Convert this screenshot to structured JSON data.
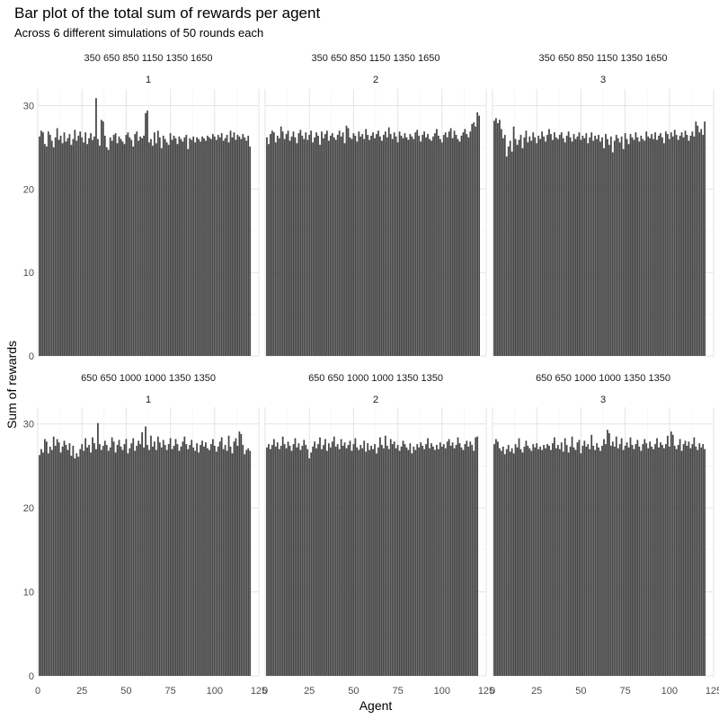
{
  "chart_data": {
    "type": "bar",
    "title": "Bar plot of the total sum of rewards per agent",
    "subtitle": "Across 6 different simulations of 50 rounds each",
    "xlabel": "Agent",
    "ylabel": "Sum of rewards",
    "xlim": [
      0,
      125
    ],
    "ylim": [
      0,
      32
    ],
    "x_ticks": [
      0,
      25,
      50,
      75,
      100,
      125
    ],
    "y_ticks": [
      0,
      10,
      20,
      30
    ],
    "grid": true,
    "bar_color": "#474747",
    "facet_rows": [
      "350 650 850 1150 1350 1650",
      "650 650 1000 1000 1350 1350"
    ],
    "facet_cols": [
      "1",
      "2",
      "3"
    ],
    "panels": [
      {
        "row_label": "350 650 850 1150 1350 1650",
        "col_label": "1",
        "x_start": 1,
        "values": [
          26.3,
          27.0,
          26.8,
          25.4,
          25.1,
          26.9,
          26.5,
          25.8,
          25.0,
          26.2,
          27.3,
          25.9,
          26.4,
          25.5,
          26.8,
          25.7,
          26.1,
          26.6,
          25.3,
          26.0,
          27.1,
          25.8,
          26.4,
          26.9,
          26.2,
          25.6,
          26.8,
          25.4,
          26.1,
          26.7,
          25.9,
          26.3,
          30.9,
          26.0,
          25.2,
          28.3,
          28.1,
          26.4,
          25.0,
          24.7,
          26.2,
          25.8,
          26.5,
          26.7,
          25.5,
          26.3,
          26.0,
          25.7,
          25.4,
          26.5,
          26.8,
          26.2,
          25.9,
          25.1,
          26.6,
          26.9,
          25.8,
          26.3,
          26.1,
          26.4,
          29.1,
          29.4,
          25.6,
          26.0,
          25.2,
          26.8,
          25.5,
          27.0,
          26.2,
          24.9,
          26.4,
          26.0,
          25.6,
          25.3,
          26.7,
          25.9,
          26.4,
          26.1,
          25.4,
          26.3,
          26.0,
          25.7,
          26.2,
          26.5,
          24.8,
          26.1,
          25.9,
          26.3,
          25.6,
          26.2,
          26.0,
          25.7,
          26.3,
          26.1,
          25.8,
          26.4,
          26.2,
          26.0,
          26.6,
          26.3,
          25.9,
          26.5,
          26.2,
          26.7,
          25.8,
          26.1,
          26.5,
          25.6,
          27.0,
          26.2,
          26.8,
          25.9,
          26.5,
          26.3,
          26.0,
          26.6,
          26.2,
          25.8,
          26.4,
          25.1
        ]
      },
      {
        "row_label": "350 650 850 1150 1350 1650",
        "col_label": "2",
        "x_start": 1,
        "values": [
          26.2,
          25.4,
          26.6,
          27.0,
          26.8,
          25.6,
          26.4,
          26.1,
          27.5,
          26.9,
          26.0,
          26.6,
          27.0,
          25.8,
          26.3,
          26.9,
          26.2,
          25.5,
          26.7,
          27.1,
          26.4,
          26.0,
          26.8,
          25.9,
          26.5,
          27.0,
          25.6,
          26.2,
          26.8,
          26.4,
          25.3,
          26.9,
          26.1,
          26.6,
          27.0,
          25.8,
          26.4,
          26.7,
          26.2,
          25.9,
          26.5,
          27.0,
          26.3,
          26.8,
          25.5,
          27.6,
          27.3,
          26.2,
          26.0,
          26.7,
          26.4,
          25.7,
          26.9,
          26.3,
          26.6,
          26.0,
          27.2,
          26.5,
          25.9,
          26.4,
          26.8,
          26.1,
          26.6,
          27.0,
          26.3,
          25.8,
          26.5,
          26.9,
          26.2,
          27.4,
          26.6,
          26.0,
          26.8,
          26.3,
          25.6,
          26.9,
          26.4,
          26.1,
          26.7,
          26.2,
          25.9,
          26.6,
          26.3,
          26.0,
          26.8,
          27.1,
          26.4,
          25.7,
          26.5,
          26.9,
          26.2,
          26.6,
          26.0,
          25.8,
          26.3,
          26.7,
          27.2,
          26.4,
          26.0,
          25.6,
          26.5,
          26.8,
          26.2,
          26.9,
          27.3,
          26.1,
          27.0,
          26.5,
          26.0,
          25.7,
          26.4,
          26.8,
          27.2,
          26.6,
          26.2,
          26.9,
          27.8,
          28.0,
          27.5,
          29.2,
          28.8
        ]
      },
      {
        "row_label": "350 650 850 1150 1350 1650",
        "col_label": "3",
        "x_start": 1,
        "values": [
          28.2,
          28.5,
          27.9,
          28.3,
          27.2,
          26.1,
          26.5,
          23.9,
          25.1,
          25.8,
          24.5,
          27.5,
          26.0,
          25.3,
          25.9,
          26.5,
          24.9,
          26.2,
          27.0,
          25.6,
          26.3,
          25.8,
          26.8,
          26.2,
          25.5,
          26.4,
          26.0,
          26.9,
          26.3,
          25.7,
          26.5,
          27.2,
          26.6,
          25.9,
          26.8,
          26.2,
          26.0,
          26.5,
          26.8,
          26.1,
          25.6,
          26.4,
          26.9,
          26.2,
          25.7,
          26.6,
          26.0,
          26.3,
          26.8,
          25.9,
          26.4,
          26.1,
          26.7,
          25.5,
          26.2,
          26.8,
          25.8,
          26.4,
          26.0,
          26.5,
          25.7,
          26.2,
          24.9,
          26.6,
          26.0,
          25.3,
          26.3,
          24.4,
          25.8,
          26.5,
          26.1,
          25.6,
          26.3,
          24.8,
          26.7,
          26.0,
          25.4,
          26.6,
          26.2,
          25.9,
          26.8,
          26.2,
          25.7,
          26.4,
          26.0,
          25.8,
          26.9,
          26.3,
          26.1,
          26.6,
          26.0,
          26.8,
          25.9,
          26.4,
          26.7,
          26.2,
          25.5,
          26.9,
          26.6,
          26.0,
          26.8,
          26.3,
          27.1,
          26.5,
          25.9,
          26.4,
          26.8,
          26.2,
          27.0,
          26.5,
          25.8,
          26.4,
          26.9,
          26.3,
          28.1,
          27.6,
          26.8,
          27.2,
          26.5,
          28.1
        ]
      },
      {
        "row_label": "650 650 1000 1000 1350 1350",
        "col_label": "1",
        "x_start": 1,
        "values": [
          26.3,
          27.0,
          26.6,
          28.2,
          27.9,
          26.5,
          27.3,
          26.9,
          28.5,
          27.4,
          28.2,
          27.8,
          26.6,
          27.3,
          28.0,
          27.5,
          26.9,
          27.7,
          26.2,
          27.4,
          25.9,
          26.5,
          26.1,
          27.0,
          27.6,
          26.8,
          28.3,
          27.2,
          27.5,
          26.6,
          28.4,
          27.7,
          27.0,
          30.1,
          27.6,
          26.9,
          27.4,
          28.0,
          27.5,
          26.8,
          27.2,
          28.4,
          27.9,
          26.6,
          27.5,
          28.1,
          27.3,
          26.9,
          27.6,
          28.2,
          26.5,
          27.1,
          27.7,
          28.3,
          26.8,
          27.4,
          28.0,
          27.6,
          29.0,
          27.2,
          29.7,
          27.5,
          26.9,
          28.6,
          27.3,
          27.9,
          26.9,
          28.5,
          27.8,
          27.2,
          28.1,
          27.5,
          26.9,
          27.6,
          28.3,
          27.0,
          27.4,
          28.2,
          27.6,
          26.8,
          27.3,
          27.9,
          28.5,
          27.6,
          27.0,
          27.5,
          28.1,
          27.2,
          26.8,
          27.7,
          26.6,
          27.5,
          28.0,
          27.3,
          27.8,
          27.1,
          26.9,
          27.6,
          28.2,
          27.4,
          26.7,
          27.3,
          27.9,
          28.4,
          27.0,
          27.5,
          26.8,
          28.6,
          27.3,
          26.5,
          27.9,
          28.3,
          27.4,
          29.1,
          28.8,
          27.5,
          26.4,
          26.9,
          27.1,
          26.8
        ]
      },
      {
        "row_label": "650 650 1000 1000 1350 1350",
        "col_label": "2",
        "x_start": 1,
        "values": [
          27.2,
          27.6,
          27.0,
          27.5,
          28.2,
          27.3,
          27.8,
          27.0,
          27.4,
          28.5,
          27.6,
          27.1,
          27.9,
          27.4,
          26.8,
          27.6,
          28.3,
          27.2,
          27.7,
          26.9,
          27.4,
          28.1,
          27.5,
          27.0,
          25.9,
          26.6,
          27.3,
          27.9,
          27.1,
          27.6,
          28.4,
          27.0,
          27.5,
          28.2,
          26.8,
          27.7,
          27.2,
          27.9,
          28.5,
          27.3,
          27.6,
          27.0,
          28.2,
          27.4,
          27.8,
          27.1,
          27.5,
          28.0,
          26.8,
          27.6,
          28.3,
          27.2,
          26.9,
          27.5,
          27.1,
          28.0,
          26.7,
          27.7,
          26.9,
          27.4,
          27.0,
          27.6,
          26.5,
          27.2,
          28.4,
          27.5,
          27.1,
          28.6,
          27.4,
          27.0,
          28.2,
          27.6,
          27.9,
          27.1,
          27.5,
          26.8,
          27.3,
          28.0,
          27.6,
          27.2,
          26.9,
          27.7,
          26.5,
          27.3,
          26.9,
          27.6,
          27.2,
          27.8,
          27.4,
          27.0,
          27.6,
          28.3,
          27.1,
          27.7,
          27.3,
          26.9,
          27.5,
          27.0,
          27.8,
          27.3,
          27.6,
          27.1,
          27.9,
          28.2,
          27.4,
          27.8,
          27.1,
          27.5,
          28.4,
          27.7,
          27.2,
          26.9,
          27.6,
          28.0,
          27.3,
          27.9,
          27.5,
          26.8,
          28.4,
          28.5
        ]
      },
      {
        "row_label": "650 650 1000 1000 1350 1350",
        "col_label": "3",
        "x_start": 1,
        "values": [
          27.6,
          28.2,
          27.9,
          27.1,
          26.8,
          27.3,
          26.4,
          27.0,
          27.5,
          26.7,
          27.1,
          26.5,
          27.6,
          27.2,
          28.3,
          27.0,
          26.6,
          27.3,
          28.0,
          27.4,
          27.1,
          26.8,
          27.6,
          27.2,
          27.7,
          27.0,
          27.3,
          26.9,
          27.5,
          27.1,
          27.6,
          27.4,
          26.9,
          27.7,
          28.4,
          27.1,
          27.5,
          27.0,
          27.8,
          26.7,
          28.3,
          27.5,
          26.6,
          27.3,
          28.5,
          27.2,
          26.9,
          27.8,
          28.1,
          26.5,
          27.4,
          28.0,
          27.3,
          27.6,
          27.0,
          28.7,
          27.4,
          26.9,
          27.7,
          27.2,
          26.8,
          27.4,
          28.2,
          27.6,
          29.3,
          28.9,
          27.4,
          27.9,
          27.3,
          28.5,
          27.1,
          27.6,
          28.3,
          26.9,
          27.4,
          27.8,
          27.2,
          28.4,
          27.5,
          27.0,
          27.6,
          28.1,
          27.3,
          26.8,
          27.6,
          28.2,
          27.7,
          27.1,
          27.9,
          27.3,
          27.0,
          27.6,
          28.3,
          27.2,
          27.8,
          27.5,
          27.1,
          27.6,
          28.6,
          27.3,
          29.1,
          28.7,
          27.4,
          27.0,
          27.5,
          28.2,
          26.8,
          27.6,
          28.0,
          27.4,
          27.9,
          27.1,
          27.6,
          28.4,
          27.3,
          26.9,
          27.7,
          27.2,
          27.6,
          27.0
        ]
      }
    ]
  }
}
